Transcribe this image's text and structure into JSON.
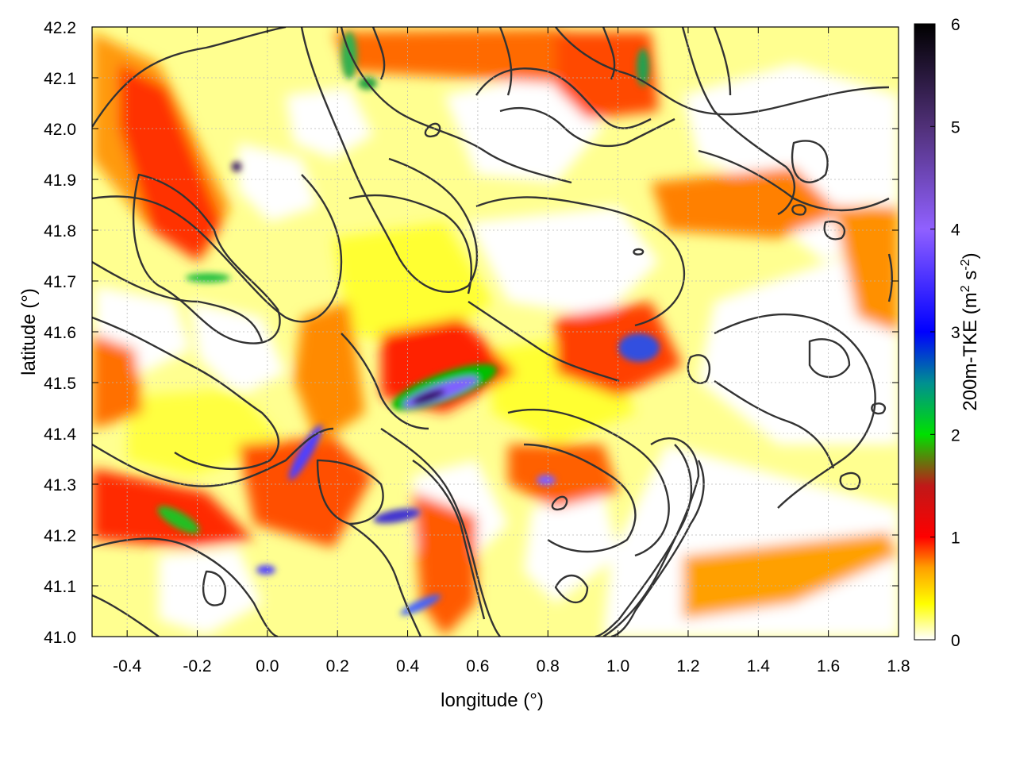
{
  "chart_data": {
    "type": "heatmap",
    "title": "",
    "xlabel": "longitude (°)",
    "ylabel": "latitude (°)",
    "xlim": [
      -0.5,
      1.8
    ],
    "ylim": [
      41.0,
      42.2
    ],
    "x_ticks": [
      -0.4,
      -0.2,
      0.0,
      0.2,
      0.4,
      0.6,
      0.8,
      1.0,
      1.2,
      1.4,
      1.6,
      1.8
    ],
    "x_tick_labels": [
      "-0.4",
      "-0.2",
      "0.0",
      "0.2",
      "0.4",
      "0.6",
      "0.8",
      "1.0",
      "1.2",
      "1.4",
      "1.6",
      "1.8"
    ],
    "y_ticks": [
      41.0,
      41.1,
      41.2,
      41.3,
      41.4,
      41.5,
      41.6,
      41.7,
      41.8,
      41.9,
      42.0,
      42.1,
      42.2
    ],
    "y_tick_labels": [
      "41.0",
      "41.1",
      "41.2",
      "41.3",
      "41.4",
      "41.5",
      "41.6",
      "41.7",
      "41.8",
      "41.9",
      "42.0",
      "42.1",
      "42.2"
    ],
    "grid": true,
    "colorbar": {
      "label_main": "200m-TKE (m",
      "label_sup1": "2",
      "label_mid": " s",
      "label_sup2": "-2",
      "label_end": ")",
      "range": [
        0,
        6
      ],
      "ticks": [
        0,
        1,
        2,
        3,
        4,
        5,
        6
      ],
      "tick_labels": [
        "0",
        "1",
        "2",
        "3",
        "4",
        "5",
        "6"
      ],
      "stops": [
        {
          "value": 0.0,
          "color": "#ffffff"
        },
        {
          "value": 0.35,
          "color": "#ffff00"
        },
        {
          "value": 0.7,
          "color": "#ffa000"
        },
        {
          "value": 1.0,
          "color": "#ff0000"
        },
        {
          "value": 1.5,
          "color": "#c01818"
        },
        {
          "value": 2.0,
          "color": "#00e000"
        },
        {
          "value": 2.5,
          "color": "#009090"
        },
        {
          "value": 3.0,
          "color": "#0000ff"
        },
        {
          "value": 4.0,
          "color": "#9060ff"
        },
        {
          "value": 5.0,
          "color": "#503078"
        },
        {
          "value": 6.0,
          "color": "#000000"
        }
      ]
    },
    "hotspots": [
      {
        "lon": 0.48,
        "lat": 41.5,
        "tke": 5.0
      },
      {
        "lon": 0.4,
        "lat": 41.48,
        "tke": 4.0
      },
      {
        "lon": -0.28,
        "lat": 41.23,
        "tke": 2.5
      },
      {
        "lon": 0.15,
        "lat": 41.38,
        "tke": 4.0
      },
      {
        "lon": 0.4,
        "lat": 41.24,
        "tke": 4.0
      },
      {
        "lon": 1.05,
        "lat": 41.57,
        "tke": 3.5
      },
      {
        "lon": -0.18,
        "lat": 41.7,
        "tke": 2.5
      },
      {
        "lon": -0.1,
        "lat": 41.9,
        "tke": 5.0
      },
      {
        "lon": 0.8,
        "lat": 41.31,
        "tke": 3.5
      },
      {
        "lon": 0.05,
        "lat": 41.12,
        "tke": 4.0
      },
      {
        "lon": 0.45,
        "lat": 41.07,
        "tke": 3.5
      }
    ]
  }
}
